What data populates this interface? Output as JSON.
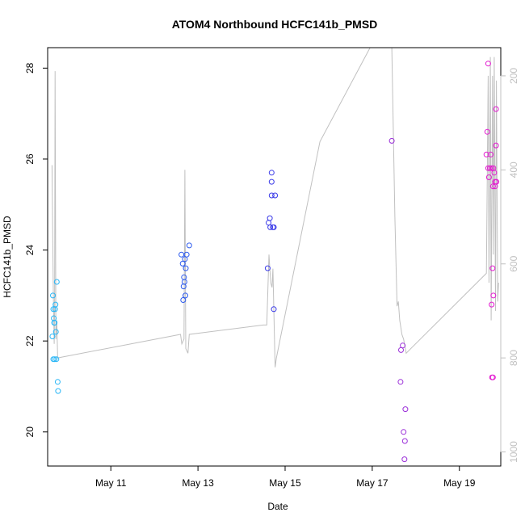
{
  "chart_data": {
    "type": "scatter",
    "title": "ATOM4 Northbound HCFC141b_PMSD",
    "xlabel": "Date",
    "ylabel": "HCFC141b_PMSD",
    "xlim": [
      9.55,
      19.95
    ],
    "ylim": [
      19.25,
      28.45
    ],
    "x_ticks": [
      {
        "value": 11,
        "label": "May 11"
      },
      {
        "value": 13,
        "label": "May 13"
      },
      {
        "value": 15,
        "label": "May 15"
      },
      {
        "value": 17,
        "label": "May 17"
      },
      {
        "value": 19,
        "label": "May 19"
      }
    ],
    "y_ticks": [
      20,
      22,
      24,
      26,
      28
    ],
    "y2_axis": {
      "description": "altitude (grey line, inverted)",
      "ylim": [
        1030,
        140
      ],
      "ticks": [
        200,
        400,
        600,
        800,
        1000
      ],
      "color": "#c0c0c0"
    },
    "series": [
      {
        "name": "points",
        "kind": "scatter",
        "points": [
          {
            "x": 9.67,
            "y": 23.0,
            "color": "#29b6f6"
          },
          {
            "x": 9.68,
            "y": 22.7,
            "color": "#29b6f6"
          },
          {
            "x": 9.69,
            "y": 22.5,
            "color": "#29b6f6"
          },
          {
            "x": 9.7,
            "y": 22.4,
            "color": "#29b6f6"
          },
          {
            "x": 9.66,
            "y": 22.1,
            "color": "#29b6f6"
          },
          {
            "x": 9.71,
            "y": 22.4,
            "color": "#29b6f6"
          },
          {
            "x": 9.72,
            "y": 22.7,
            "color": "#29b6f6"
          },
          {
            "x": 9.73,
            "y": 22.8,
            "color": "#29b6f6"
          },
          {
            "x": 9.74,
            "y": 22.2,
            "color": "#29b6f6"
          },
          {
            "x": 9.76,
            "y": 23.3,
            "color": "#29b6f6"
          },
          {
            "x": 9.68,
            "y": 21.6,
            "color": "#29b6f6"
          },
          {
            "x": 9.71,
            "y": 21.6,
            "color": "#29b6f6"
          },
          {
            "x": 9.75,
            "y": 21.6,
            "color": "#29b6f6"
          },
          {
            "x": 9.78,
            "y": 21.1,
            "color": "#29b6f6"
          },
          {
            "x": 9.79,
            "y": 20.9,
            "color": "#29b6f6"
          },
          {
            "x": 12.62,
            "y": 23.9,
            "color": "#2d5bee"
          },
          {
            "x": 12.65,
            "y": 23.7,
            "color": "#2d5bee"
          },
          {
            "x": 12.7,
            "y": 23.8,
            "color": "#2d5bee"
          },
          {
            "x": 12.74,
            "y": 23.9,
            "color": "#2d5bee"
          },
          {
            "x": 12.8,
            "y": 24.1,
            "color": "#2d5bee"
          },
          {
            "x": 12.68,
            "y": 23.4,
            "color": "#2d5bee"
          },
          {
            "x": 12.72,
            "y": 23.6,
            "color": "#2d5bee"
          },
          {
            "x": 12.69,
            "y": 23.3,
            "color": "#2d5bee"
          },
          {
            "x": 12.67,
            "y": 23.2,
            "color": "#2d5bee"
          },
          {
            "x": 12.71,
            "y": 23.0,
            "color": "#2d5bee"
          },
          {
            "x": 12.66,
            "y": 22.9,
            "color": "#2d5bee"
          },
          {
            "x": 14.62,
            "y": 24.6,
            "color": "#3a3ae8"
          },
          {
            "x": 14.65,
            "y": 24.7,
            "color": "#3a3ae8"
          },
          {
            "x": 14.66,
            "y": 24.5,
            "color": "#3a3ae8"
          },
          {
            "x": 14.72,
            "y": 24.5,
            "color": "#3a3ae8"
          },
          {
            "x": 14.74,
            "y": 24.5,
            "color": "#3a3ae8"
          },
          {
            "x": 14.69,
            "y": 25.7,
            "color": "#3a3ae8"
          },
          {
            "x": 14.69,
            "y": 25.5,
            "color": "#3a3ae8"
          },
          {
            "x": 14.69,
            "y": 25.2,
            "color": "#3a3ae8"
          },
          {
            "x": 14.77,
            "y": 25.2,
            "color": "#3a3ae8"
          },
          {
            "x": 14.6,
            "y": 23.6,
            "color": "#3a3ae8"
          },
          {
            "x": 14.74,
            "y": 22.7,
            "color": "#3a3ae8"
          },
          {
            "x": 17.45,
            "y": 26.4,
            "color": "#9b2fd9"
          },
          {
            "x": 17.66,
            "y": 21.8,
            "color": "#9b2fd9"
          },
          {
            "x": 17.7,
            "y": 21.9,
            "color": "#9b2fd9"
          },
          {
            "x": 17.65,
            "y": 21.1,
            "color": "#9b2fd9"
          },
          {
            "x": 17.76,
            "y": 20.5,
            "color": "#9b2fd9"
          },
          {
            "x": 17.72,
            "y": 20.0,
            "color": "#9b2fd9"
          },
          {
            "x": 17.75,
            "y": 19.8,
            "color": "#9b2fd9"
          },
          {
            "x": 17.74,
            "y": 19.4,
            "color": "#9b2fd9"
          },
          {
            "x": 19.66,
            "y": 28.1,
            "color": "#e31ad0"
          },
          {
            "x": 19.64,
            "y": 26.6,
            "color": "#e31ad0"
          },
          {
            "x": 19.62,
            "y": 26.1,
            "color": "#e31ad0"
          },
          {
            "x": 19.72,
            "y": 26.1,
            "color": "#e31ad0"
          },
          {
            "x": 19.66,
            "y": 25.8,
            "color": "#e31ad0"
          },
          {
            "x": 19.7,
            "y": 25.8,
            "color": "#e31ad0"
          },
          {
            "x": 19.74,
            "y": 25.8,
            "color": "#e31ad0"
          },
          {
            "x": 19.78,
            "y": 25.8,
            "color": "#e31ad0"
          },
          {
            "x": 19.68,
            "y": 25.6,
            "color": "#e31ad0"
          },
          {
            "x": 19.8,
            "y": 25.7,
            "color": "#e31ad0"
          },
          {
            "x": 19.84,
            "y": 26.3,
            "color": "#e31ad0"
          },
          {
            "x": 19.84,
            "y": 27.1,
            "color": "#e31ad0"
          },
          {
            "x": 19.82,
            "y": 25.5,
            "color": "#e31ad0"
          },
          {
            "x": 19.85,
            "y": 25.5,
            "color": "#e31ad0"
          },
          {
            "x": 19.77,
            "y": 25.4,
            "color": "#e31ad0"
          },
          {
            "x": 19.82,
            "y": 25.4,
            "color": "#e31ad0"
          },
          {
            "x": 19.76,
            "y": 23.6,
            "color": "#e31ad0"
          },
          {
            "x": 19.78,
            "y": 23.0,
            "color": "#e31ad0"
          },
          {
            "x": 19.74,
            "y": 22.8,
            "color": "#e31ad0"
          },
          {
            "x": 19.75,
            "y": 21.2,
            "color": "#e31ad0"
          },
          {
            "x": 19.77,
            "y": 21.2,
            "color": "#e31ad0"
          }
        ]
      },
      {
        "name": "altitude",
        "kind": "line",
        "axis": "y2",
        "color": "#c0c0c0",
        "points": [
          [
            9.65,
            390
          ],
          [
            9.68,
            660
          ],
          [
            9.7,
            770
          ],
          [
            9.71,
            700
          ],
          [
            9.72,
            190
          ],
          [
            9.74,
            760
          ],
          [
            9.76,
            720
          ],
          [
            9.78,
            800
          ],
          [
            12.6,
            750
          ],
          [
            12.63,
            770
          ],
          [
            12.68,
            760
          ],
          [
            12.7,
            400
          ],
          [
            12.72,
            780
          ],
          [
            12.77,
            790
          ],
          [
            12.8,
            750
          ],
          [
            14.5,
            730
          ],
          [
            14.58,
            730
          ],
          [
            14.63,
            580
          ],
          [
            14.67,
            640
          ],
          [
            14.7,
            650
          ],
          [
            14.72,
            610
          ],
          [
            14.77,
            820
          ],
          [
            14.8,
            800
          ],
          [
            15.8,
            340
          ],
          [
            16.95,
            140
          ],
          [
            17.4,
            140
          ],
          [
            17.45,
            140
          ],
          [
            17.52,
            500
          ],
          [
            17.57,
            690
          ],
          [
            17.6,
            680
          ],
          [
            17.63,
            720
          ],
          [
            17.68,
            750
          ],
          [
            17.72,
            760
          ],
          [
            17.78,
            790
          ],
          [
            19.62,
            620
          ],
          [
            19.66,
            200
          ],
          [
            19.68,
            640
          ],
          [
            19.71,
            160
          ],
          [
            19.73,
            720
          ],
          [
            19.76,
            200
          ],
          [
            19.78,
            580
          ],
          [
            19.8,
            160
          ],
          [
            19.83,
            700
          ],
          [
            19.85,
            210
          ],
          [
            19.88,
            680
          ],
          [
            19.9,
            640
          ]
        ]
      }
    ]
  }
}
